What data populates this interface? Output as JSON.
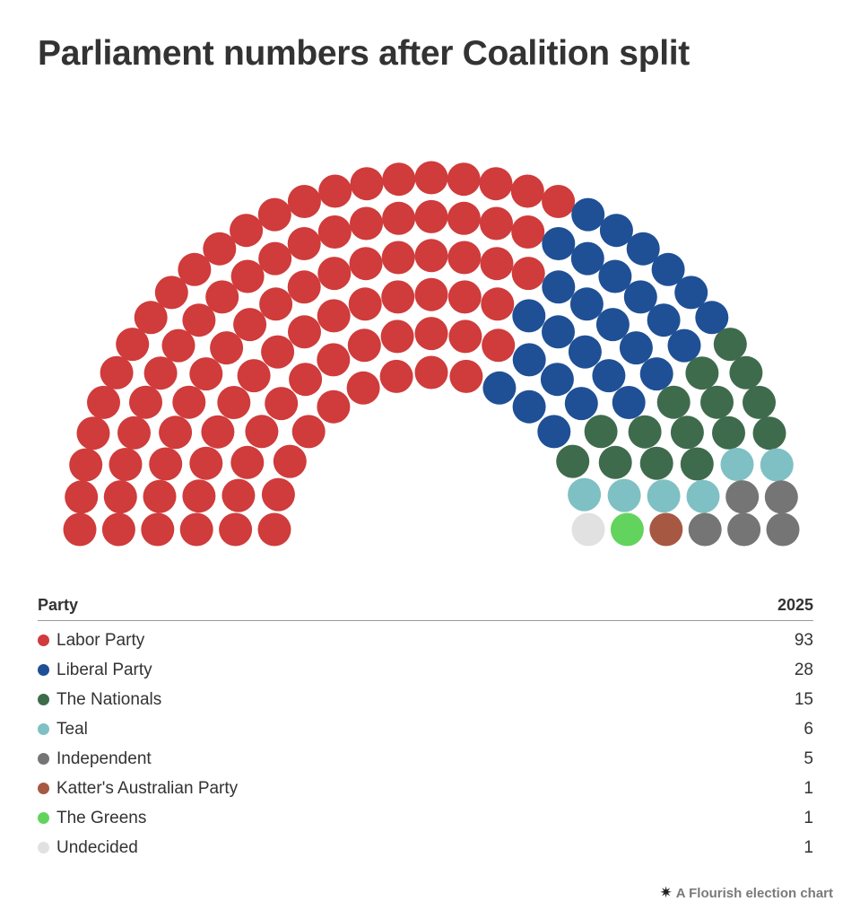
{
  "title": "Parliament numbers after Coalition split",
  "table": {
    "header_party": "Party",
    "header_year": "2025"
  },
  "footer": {
    "icon": "flourish-asterisk-icon",
    "text": "A Flourish election chart"
  },
  "chart_data": {
    "type": "hemicycle",
    "year": "2025",
    "total_seats": 150,
    "parties": [
      {
        "name": "Labor Party",
        "seats": 93,
        "color": "#d03b3b"
      },
      {
        "name": "Liberal Party",
        "seats": 28,
        "color": "#1f5096"
      },
      {
        "name": "The Nationals",
        "seats": 15,
        "color": "#3f6b4d"
      },
      {
        "name": "Teal",
        "seats": 6,
        "color": "#7fc0c4"
      },
      {
        "name": "Independent",
        "seats": 5,
        "color": "#757575"
      },
      {
        "name": "Katter's Australian Party",
        "seats": 1,
        "color": "#a75843"
      },
      {
        "name": "The Greens",
        "seats": 1,
        "color": "#62d45e"
      },
      {
        "name": "Undecided",
        "seats": 1,
        "color": "#e1e1e1"
      }
    ]
  }
}
